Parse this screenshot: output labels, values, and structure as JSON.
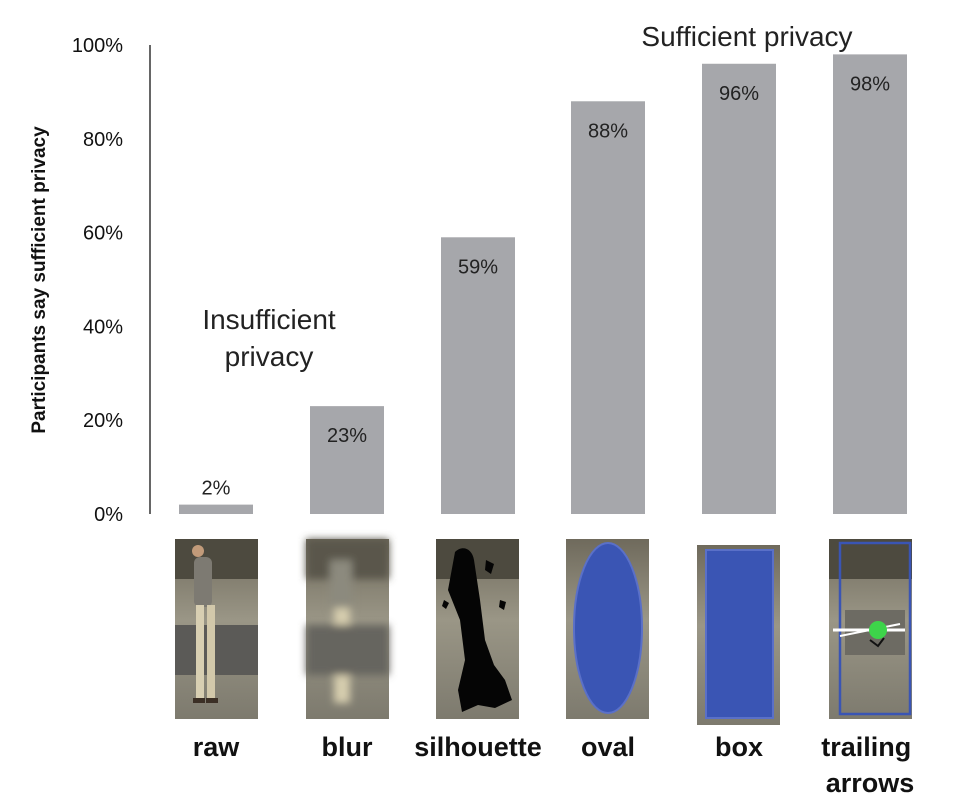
{
  "chart_data": {
    "type": "bar",
    "categories": [
      "raw",
      "blur",
      "silhouette",
      "oval",
      "box",
      "trailing arrows"
    ],
    "values": [
      2,
      23,
      59,
      88,
      96,
      98
    ],
    "data_labels": [
      "2%",
      "23%",
      "59%",
      "88%",
      "96%",
      "98%"
    ],
    "ylabel": "Participants say sufficient privacy",
    "xlabel": "",
    "ylim": [
      0,
      100
    ],
    "yticks": [
      0,
      20,
      40,
      60,
      80,
      100
    ],
    "ytick_labels": [
      "0%",
      "20%",
      "40%",
      "60%",
      "80%",
      "100%"
    ],
    "grid": false,
    "bar_color": "#a6a7ab",
    "annotations": {
      "insufficient": [
        "Insufficient",
        "privacy"
      ],
      "sufficient": "Sufficient privacy"
    },
    "thumbnails": [
      "raw",
      "blur",
      "silhouette",
      "oval",
      "box",
      "trailing arrows"
    ],
    "thumbnail_colors": {
      "overlay_blue": "#3a55b4",
      "room": "#8a8472",
      "arrow_green": "#3dd44a"
    }
  }
}
